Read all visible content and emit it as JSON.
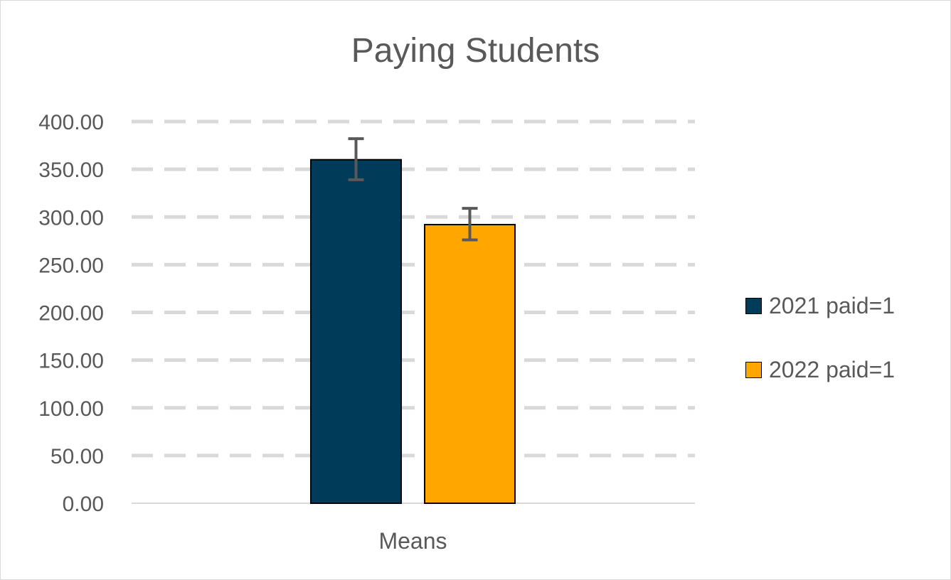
{
  "chart_data": {
    "type": "bar",
    "title": "Paying Students",
    "categories": [
      "Means"
    ],
    "series": [
      {
        "name": "2021 paid=1",
        "values": [
          360.0
        ],
        "error_low": [
          339.0
        ],
        "error_high": [
          382.0
        ],
        "color": "#003B5A"
      },
      {
        "name": "2022 paid=1",
        "values": [
          292.0
        ],
        "error_low": [
          276.0
        ],
        "error_high": [
          309.0
        ],
        "color": "#FFA600"
      }
    ],
    "ylim": [
      0,
      400
    ],
    "yticks": [
      "0.00",
      "50.00",
      "100.00",
      "150.00",
      "200.00",
      "250.00",
      "300.00",
      "350.00",
      "400.00"
    ],
    "ytick_values": [
      0,
      50,
      100,
      150,
      200,
      250,
      300,
      350,
      400
    ],
    "grid": true,
    "grid_style": "dashed",
    "legend_position": "right",
    "error_bar_color": "#595959",
    "xlabel": "",
    "ylabel": ""
  }
}
